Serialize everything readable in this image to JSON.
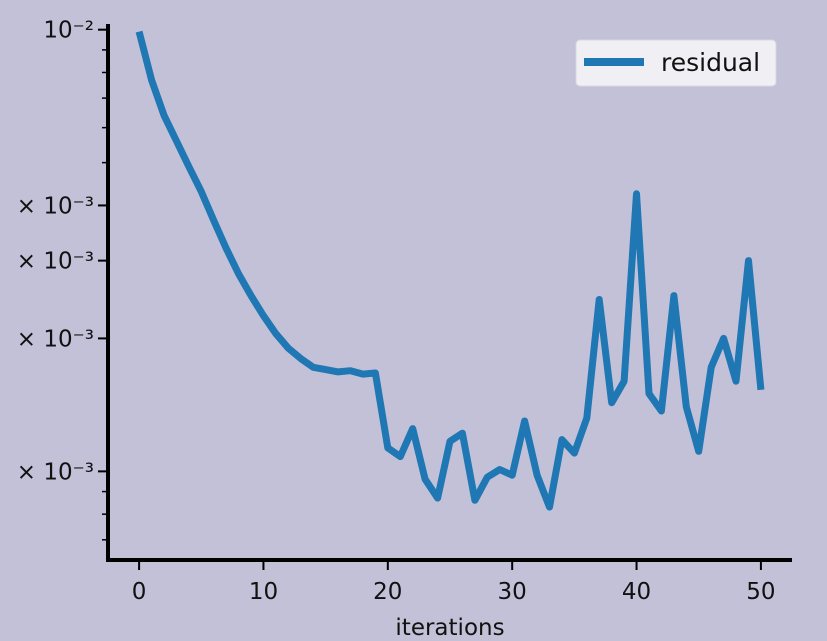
{
  "chart_data": {
    "type": "line",
    "title": "",
    "xlabel": "iterations",
    "ylabel": "",
    "xlim": [
      -2.5,
      52.5
    ],
    "ylim": [
      0.00063,
      0.0103
    ],
    "yscale": "log",
    "grid": false,
    "legend_position": "top-right",
    "x_ticks": [
      0,
      10,
      20,
      30,
      40,
      50
    ],
    "x_tick_labels": [
      "0",
      "10",
      "20",
      "30",
      "40",
      "50"
    ],
    "y_ticks": [
      0.01,
      0.004,
      0.003,
      0.002,
      0.001
    ],
    "y_tick_labels": [
      "10⁻²",
      "× 10⁻³",
      "× 10⁻³",
      "× 10⁻³",
      "× 10⁻³"
    ],
    "series": [
      {
        "name": "residual",
        "color": "#1f77b4",
        "x": [
          0,
          1,
          2,
          3,
          4,
          5,
          6,
          7,
          8,
          9,
          10,
          11,
          12,
          13,
          14,
          15,
          16,
          17,
          18,
          19,
          20,
          21,
          22,
          23,
          24,
          25,
          26,
          27,
          28,
          29,
          30,
          31,
          32,
          33,
          34,
          35,
          36,
          37,
          38,
          39,
          40,
          41,
          42,
          43,
          44,
          45,
          46,
          47,
          48,
          49,
          50
        ],
        "values": [
          0.0099,
          0.0077,
          0.0064,
          0.0056,
          0.0049,
          0.0043,
          0.0037,
          0.0032,
          0.0028,
          0.0025,
          0.00225,
          0.00205,
          0.0019,
          0.0018,
          0.00172,
          0.0017,
          0.00168,
          0.00169,
          0.00166,
          0.00167,
          0.00113,
          0.00108,
          0.00125,
          0.00096,
          0.00087,
          0.00117,
          0.00122,
          0.00086,
          0.00097,
          0.00101,
          0.00098,
          0.0013,
          0.00098,
          0.00083,
          0.00118,
          0.0011,
          0.00132,
          0.00245,
          0.00143,
          0.0016,
          0.00425,
          0.0015,
          0.00137,
          0.0025,
          0.0014,
          0.00111,
          0.00172,
          0.002,
          0.0016,
          0.003,
          0.00153
        ]
      }
    ]
  }
}
